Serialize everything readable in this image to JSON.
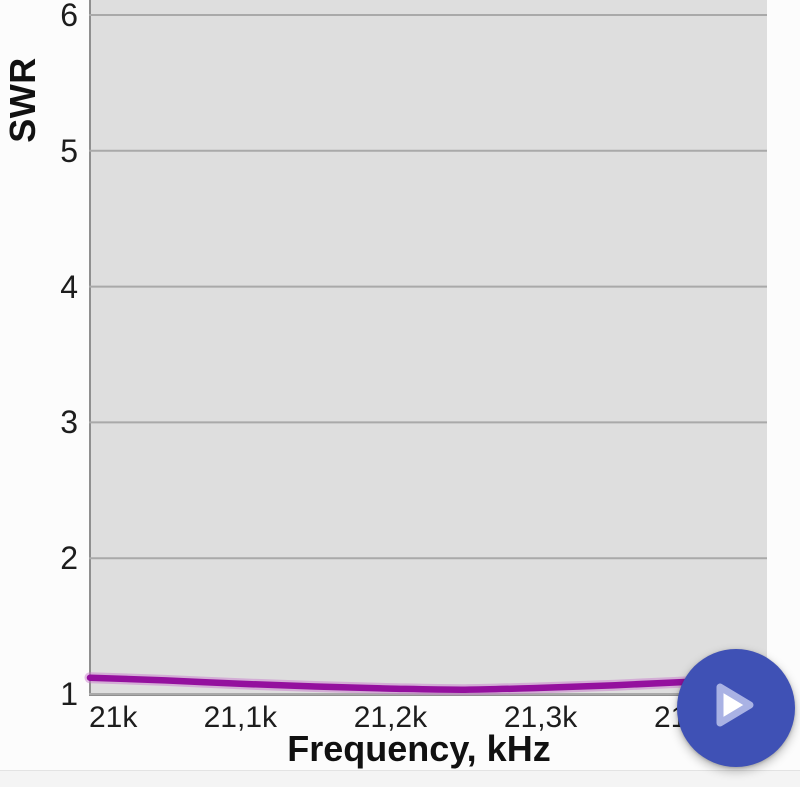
{
  "page": {
    "background": "#fcfcfc",
    "footer_background": "#f4f4f4"
  },
  "chart_data": {
    "type": "line",
    "title": "",
    "xlabel": "Frequency, kHz",
    "ylabel": "SWR",
    "xlim": [
      21000,
      21451
    ],
    "ylim": [
      1,
      6.11
    ],
    "grid": true,
    "legend": false,
    "x_ticks": [
      {
        "value": 21000,
        "label": "21k"
      },
      {
        "value": 21100,
        "label": "21,1k"
      },
      {
        "value": 21200,
        "label": "21,2k"
      },
      {
        "value": 21300,
        "label": "21,3k"
      },
      {
        "value": 21400,
        "label": "21,4k"
      }
    ],
    "y_ticks": [
      {
        "value": 1,
        "label": "1"
      },
      {
        "value": 2,
        "label": "2"
      },
      {
        "value": 3,
        "label": "3"
      },
      {
        "value": 4,
        "label": "4"
      },
      {
        "value": 5,
        "label": "5"
      },
      {
        "value": 6,
        "label": "6"
      }
    ],
    "series": [
      {
        "name": "SWR",
        "color": "#94109E",
        "halo_color": "#c77bcb",
        "x": [
          21000,
          21050,
          21100,
          21150,
          21200,
          21250,
          21300,
          21350,
          21400,
          21450
        ],
        "values": [
          1.12,
          1.1,
          1.075,
          1.055,
          1.04,
          1.032,
          1.045,
          1.065,
          1.09,
          1.12
        ]
      }
    ]
  },
  "colors": {
    "plot_background": "#dedede",
    "gridline": "#a9a9a9",
    "axis_line": "#8f8f8f",
    "tick_text": "#1d1d1d",
    "title_text": "#111111",
    "curve": "#94109E",
    "fab_background": "#3F51B5"
  },
  "fab": {
    "icon": "play-icon",
    "background": "#3F51B5",
    "icon_fill": "#ffffff",
    "icon_stroke": "#a9b2e4"
  }
}
